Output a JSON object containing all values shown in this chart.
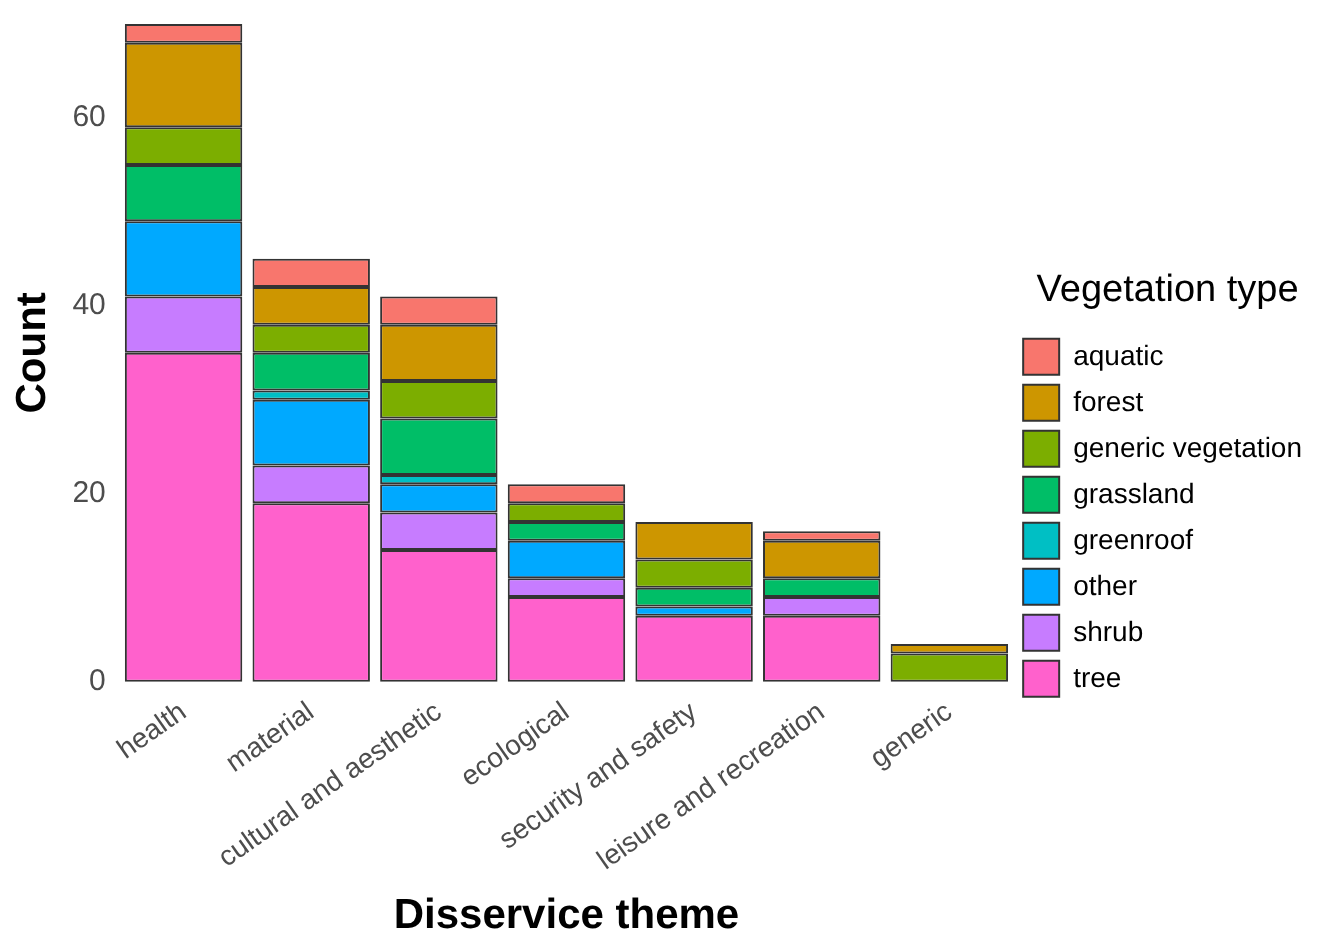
{
  "chart_data": {
    "type": "bar",
    "stacked": true,
    "xlabel": "Disservice theme",
    "ylabel": "Count",
    "legend_title": "Vegetation type",
    "legend": "right",
    "grid": false,
    "categories": [
      "health",
      "material",
      "cultural and aesthetic",
      "ecological",
      "security and safety",
      "leisure and recreation",
      "generic"
    ],
    "ylim": [
      0,
      70
    ],
    "yticks": [
      0,
      20,
      40,
      60
    ],
    "series": [
      {
        "name": "tree",
        "color": "#ff61cc",
        "values": [
          35,
          19,
          14,
          9,
          7,
          7,
          null
        ]
      },
      {
        "name": "shrub",
        "color": "#c77cff",
        "values": [
          6,
          4,
          4,
          2,
          null,
          2,
          null
        ]
      },
      {
        "name": "other",
        "color": "#00a9ff",
        "values": [
          8,
          7,
          3,
          4,
          1,
          null,
          null
        ]
      },
      {
        "name": "greenroof",
        "color": "#00bfc4",
        "values": [
          null,
          1,
          1,
          null,
          null,
          null,
          null
        ]
      },
      {
        "name": "grassland",
        "color": "#00be67",
        "values": [
          6,
          4,
          6,
          2,
          2,
          2,
          null
        ]
      },
      {
        "name": "generic vegetation",
        "color": "#7cae00",
        "values": [
          4,
          3,
          4,
          2,
          3,
          null,
          3
        ]
      },
      {
        "name": "forest",
        "color": "#cd9600",
        "values": [
          9,
          4,
          6,
          null,
          4,
          4,
          1
        ]
      },
      {
        "name": "aquatic",
        "color": "#f8766d",
        "values": [
          2,
          3,
          3,
          2,
          null,
          1,
          null
        ]
      }
    ]
  }
}
